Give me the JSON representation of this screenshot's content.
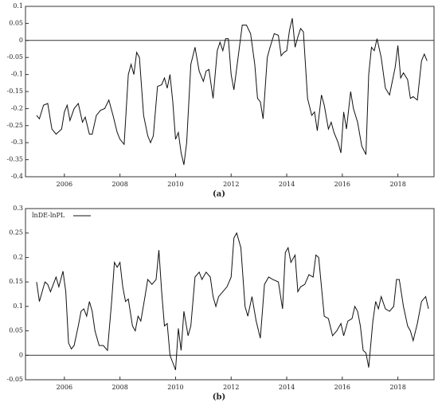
{
  "chart_data": [
    {
      "type": "line",
      "caption": "(a)",
      "xlim": [
        2004.6,
        2019.3
      ],
      "xticks": [
        2006,
        2008,
        2010,
        2012,
        2014,
        2016,
        2018
      ],
      "ylim": [
        -0.4,
        0.1
      ],
      "yticks": [
        0.1,
        0.05,
        0,
        -0.05,
        -0.1,
        -0.15,
        -0.2,
        -0.25,
        -0.3,
        -0.35,
        -0.4
      ],
      "reference_line": 0,
      "x": [
        2005.0,
        2005.1,
        2005.25,
        2005.4,
        2005.55,
        2005.7,
        2005.9,
        2006.0,
        2006.1,
        2006.2,
        2006.35,
        2006.5,
        2006.65,
        2006.75,
        2006.9,
        2007.0,
        2007.15,
        2007.3,
        2007.45,
        2007.6,
        2007.75,
        2007.9,
        2008.0,
        2008.15,
        2008.3,
        2008.4,
        2008.5,
        2008.6,
        2008.7,
        2008.85,
        2009.0,
        2009.1,
        2009.2,
        2009.35,
        2009.5,
        2009.6,
        2009.7,
        2009.8,
        2009.9,
        2010.0,
        2010.1,
        2010.2,
        2010.3,
        2010.4,
        2010.55,
        2010.7,
        2010.85,
        2011.0,
        2011.1,
        2011.2,
        2011.35,
        2011.5,
        2011.6,
        2011.7,
        2011.8,
        2011.9,
        2012.0,
        2012.1,
        2012.25,
        2012.4,
        2012.55,
        2012.7,
        2012.85,
        2012.95,
        2013.05,
        2013.15,
        2013.3,
        2013.4,
        2013.55,
        2013.7,
        2013.8,
        2013.9,
        2014.0,
        2014.1,
        2014.2,
        2014.3,
        2014.4,
        2014.5,
        2014.6,
        2014.75,
        2014.9,
        2015.0,
        2015.1,
        2015.25,
        2015.35,
        2015.5,
        2015.6,
        2015.7,
        2015.85,
        2015.95,
        2016.05,
        2016.15,
        2016.3,
        2016.4,
        2016.55,
        2016.7,
        2016.85,
        2016.95,
        2017.05,
        2017.15,
        2017.25,
        2017.4,
        2017.55,
        2017.7,
        2017.8,
        2017.9,
        2018.0,
        2018.1,
        2018.2,
        2018.35,
        2018.45,
        2018.55,
        2018.7,
        2018.85,
        2018.95,
        2019.05
      ],
      "series": [
        {
          "color": "#111111",
          "values": [
            -0.22,
            -0.23,
            -0.19,
            -0.185,
            -0.26,
            -0.275,
            -0.26,
            -0.21,
            -0.19,
            -0.235,
            -0.2,
            -0.185,
            -0.24,
            -0.225,
            -0.275,
            -0.275,
            -0.22,
            -0.205,
            -0.2,
            -0.175,
            -0.22,
            -0.27,
            -0.29,
            -0.305,
            -0.1,
            -0.07,
            -0.1,
            -0.035,
            -0.05,
            -0.22,
            -0.28,
            -0.3,
            -0.28,
            -0.135,
            -0.13,
            -0.11,
            -0.14,
            -0.1,
            -0.18,
            -0.29,
            -0.27,
            -0.33,
            -0.365,
            -0.3,
            -0.07,
            -0.02,
            -0.09,
            -0.12,
            -0.09,
            -0.085,
            -0.17,
            -0.03,
            -0.005,
            -0.03,
            0.005,
            0.005,
            -0.1,
            -0.145,
            -0.05,
            0.045,
            0.045,
            0.02,
            -0.07,
            -0.17,
            -0.18,
            -0.23,
            -0.05,
            -0.02,
            0.02,
            0.015,
            -0.045,
            -0.035,
            -0.03,
            0.03,
            0.065,
            -0.02,
            0.01,
            0.035,
            0.025,
            -0.17,
            -0.22,
            -0.21,
            -0.265,
            -0.16,
            -0.19,
            -0.26,
            -0.24,
            -0.27,
            -0.3,
            -0.33,
            -0.21,
            -0.26,
            -0.15,
            -0.2,
            -0.24,
            -0.31,
            -0.335,
            -0.1,
            -0.02,
            -0.03,
            0.005,
            -0.05,
            -0.14,
            -0.16,
            -0.12,
            -0.08,
            -0.015,
            -0.11,
            -0.095,
            -0.115,
            -0.17,
            -0.165,
            -0.175,
            -0.06,
            -0.04,
            -0.06
          ]
        }
      ]
    },
    {
      "type": "line",
      "caption": "(b)",
      "xlim": [
        2004.6,
        2019.3
      ],
      "xticks": [
        2006,
        2008,
        2010,
        2012,
        2014,
        2016,
        2018
      ],
      "ylim": [
        -0.05,
        0.3
      ],
      "yticks": [
        0.3,
        0.25,
        0.2,
        0.15,
        0.1,
        0.05,
        0,
        -0.05
      ],
      "reference_line": 0,
      "legend": "top-left",
      "x": [
        2005.0,
        2005.1,
        2005.3,
        2005.4,
        2005.5,
        2005.7,
        2005.8,
        2005.95,
        2006.05,
        2006.15,
        2006.25,
        2006.35,
        2006.5,
        2006.6,
        2006.7,
        2006.8,
        2006.9,
        2007.0,
        2007.1,
        2007.25,
        2007.4,
        2007.55,
        2007.7,
        2007.8,
        2007.9,
        2008.0,
        2008.1,
        2008.2,
        2008.3,
        2008.45,
        2008.55,
        2008.65,
        2008.75,
        2008.9,
        2009.0,
        2009.15,
        2009.3,
        2009.4,
        2009.5,
        2009.6,
        2009.7,
        2009.8,
        2009.9,
        2010.0,
        2010.1,
        2010.2,
        2010.3,
        2010.45,
        2010.55,
        2010.7,
        2010.85,
        2010.95,
        2011.1,
        2011.25,
        2011.35,
        2011.45,
        2011.55,
        2011.7,
        2011.85,
        2012.0,
        2012.1,
        2012.2,
        2012.35,
        2012.5,
        2012.6,
        2012.75,
        2012.9,
        2013.05,
        2013.2,
        2013.35,
        2013.5,
        2013.7,
        2013.85,
        2013.95,
        2014.05,
        2014.15,
        2014.3,
        2014.4,
        2014.5,
        2014.65,
        2014.8,
        2014.95,
        2015.05,
        2015.15,
        2015.35,
        2015.5,
        2015.65,
        2015.8,
        2015.95,
        2016.05,
        2016.2,
        2016.35,
        2016.45,
        2016.55,
        2016.65,
        2016.75,
        2016.85,
        2016.95,
        2017.1,
        2017.2,
        2017.3,
        2017.4,
        2017.55,
        2017.7,
        2017.85,
        2017.95,
        2018.05,
        2018.2,
        2018.35,
        2018.45,
        2018.55,
        2018.7,
        2018.85,
        2019.0,
        2019.1
      ],
      "series": [
        {
          "name": "lnDE-lnPL",
          "color": "#111111",
          "values": [
            0.15,
            0.11,
            0.15,
            0.145,
            0.13,
            0.16,
            0.14,
            0.172,
            0.13,
            0.025,
            0.013,
            0.02,
            0.06,
            0.09,
            0.095,
            0.08,
            0.11,
            0.09,
            0.05,
            0.02,
            0.02,
            0.01,
            0.11,
            0.19,
            0.18,
            0.19,
            0.14,
            0.11,
            0.115,
            0.06,
            0.05,
            0.08,
            0.07,
            0.12,
            0.155,
            0.145,
            0.155,
            0.215,
            0.13,
            0.06,
            0.065,
            0.0,
            -0.015,
            -0.03,
            0.055,
            0.01,
            0.09,
            0.04,
            0.06,
            0.16,
            0.17,
            0.155,
            0.17,
            0.16,
            0.12,
            0.1,
            0.12,
            0.13,
            0.14,
            0.16,
            0.24,
            0.25,
            0.22,
            0.1,
            0.08,
            0.12,
            0.07,
            0.035,
            0.145,
            0.16,
            0.155,
            0.15,
            0.095,
            0.21,
            0.22,
            0.19,
            0.205,
            0.13,
            0.14,
            0.145,
            0.165,
            0.16,
            0.205,
            0.2,
            0.08,
            0.075,
            0.04,
            0.05,
            0.065,
            0.04,
            0.07,
            0.075,
            0.1,
            0.09,
            0.06,
            0.01,
            0.005,
            -0.025,
            0.07,
            0.11,
            0.095,
            0.12,
            0.095,
            0.09,
            0.1,
            0.155,
            0.155,
            0.1,
            0.06,
            0.05,
            0.03,
            0.065,
            0.11,
            0.12,
            0.095
          ]
        }
      ]
    }
  ]
}
